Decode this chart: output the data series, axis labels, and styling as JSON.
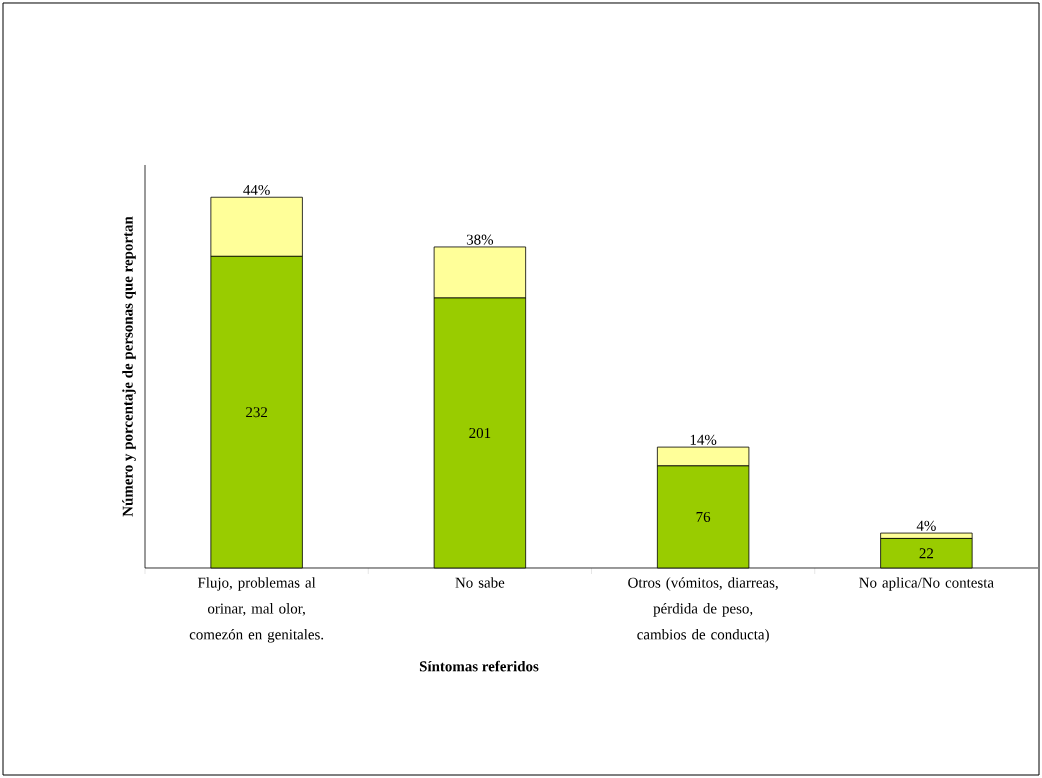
{
  "chart_data": {
    "type": "bar",
    "stacked": true,
    "xlabel": "Síntomas referidos",
    "ylabel": "Número y porcentaje de personas que reportan",
    "categories": [
      "Flujo, problemas al orinar, mal olor, comezón en genitales.",
      "No sabe",
      "Otros (vómitos, diarreas, pérdida de peso, cambios de conducta)",
      "No aplica/No contesta"
    ],
    "ylim": [
      0,
      300
    ],
    "series": [
      {
        "color": "#99cc00",
        "values": [
          232,
          201,
          76,
          22
        ],
        "value_labels": [
          "232",
          "201",
          "76",
          "22"
        ]
      },
      {
        "color": "#ffff99",
        "values": [
          44,
          38,
          14,
          4
        ],
        "value_labels": [
          "44%",
          "38%",
          "14%",
          "4%"
        ]
      }
    ]
  }
}
